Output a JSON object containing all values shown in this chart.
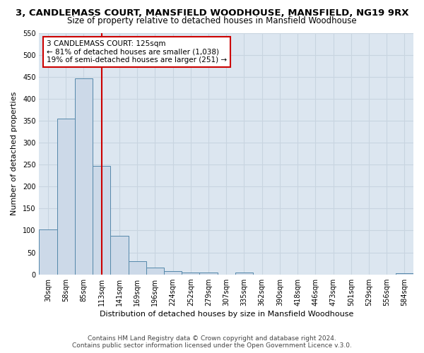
{
  "title": "3, CANDLEMASS COURT, MANSFIELD WOODHOUSE, MANSFIELD, NG19 9RX",
  "subtitle": "Size of property relative to detached houses in Mansfield Woodhouse",
  "xlabel": "Distribution of detached houses by size in Mansfield Woodhouse",
  "ylabel": "Number of detached properties",
  "bar_labels": [
    "30sqm",
    "58sqm",
    "85sqm",
    "113sqm",
    "141sqm",
    "169sqm",
    "196sqm",
    "224sqm",
    "252sqm",
    "279sqm",
    "307sqm",
    "335sqm",
    "362sqm",
    "390sqm",
    "418sqm",
    "446sqm",
    "473sqm",
    "501sqm",
    "529sqm",
    "556sqm",
    "584sqm"
  ],
  "bar_values": [
    103,
    355,
    447,
    247,
    88,
    30,
    15,
    8,
    5,
    5,
    0,
    5,
    0,
    0,
    0,
    0,
    0,
    0,
    0,
    0,
    3
  ],
  "bar_color": "#ccd9e8",
  "bar_edge_color": "#5588aa",
  "grid_color": "#c8d4e0",
  "background_color": "#dce6f0",
  "annotation_box_text": "3 CANDLEMASS COURT: 125sqm\n← 81% of detached houses are smaller (1,038)\n19% of semi-detached houses are larger (251) →",
  "red_line_x": 3.0,
  "red_line_color": "#cc0000",
  "annotation_box_color": "#ffffff",
  "annotation_box_edge_color": "#cc0000",
  "footer_text": "Contains HM Land Registry data © Crown copyright and database right 2024.\nContains public sector information licensed under the Open Government Licence v.3.0.",
  "ylim": [
    0,
    550
  ],
  "yticks": [
    0,
    50,
    100,
    150,
    200,
    250,
    300,
    350,
    400,
    450,
    500,
    550
  ],
  "title_fontsize": 9.5,
  "subtitle_fontsize": 8.5,
  "xlabel_fontsize": 8,
  "ylabel_fontsize": 8,
  "tick_fontsize": 7,
  "annotation_fontsize": 7.5,
  "footer_fontsize": 6.5
}
